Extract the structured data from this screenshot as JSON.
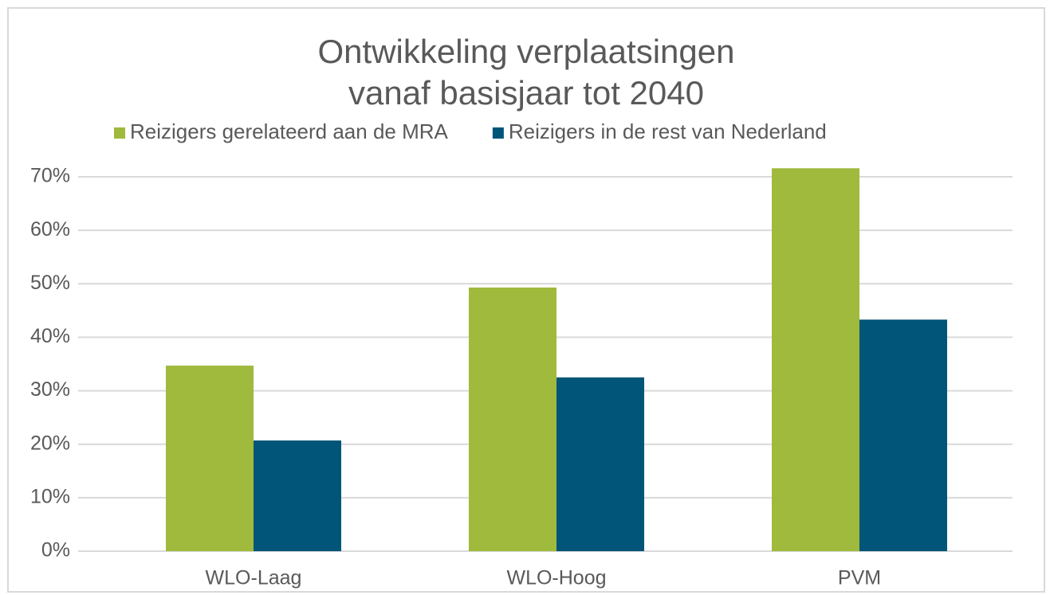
{
  "chart_data": {
    "type": "bar",
    "title": [
      "Ontwikkeling verplaatsingen",
      "vanaf basisjaar tot 2040"
    ],
    "categories": [
      "WLO-Laag",
      "WLO-Hoog",
      "PVM"
    ],
    "series": [
      {
        "name": "Reizigers gerelateerd aan de MRA",
        "color": "#9fba3c",
        "values": [
          34.7,
          49.3,
          71.6
        ]
      },
      {
        "name": "Reizigers in de rest van Nederland",
        "color": "#005578",
        "values": [
          20.7,
          32.5,
          43.3
        ]
      }
    ],
    "ylim": [
      0,
      70
    ],
    "yticks": [
      {
        "value": 0,
        "label": "0%"
      },
      {
        "value": 10,
        "label": "10%"
      },
      {
        "value": 20,
        "label": "20%"
      },
      {
        "value": 30,
        "label": "30%"
      },
      {
        "value": 40,
        "label": "40%"
      },
      {
        "value": 50,
        "label": "50%"
      },
      {
        "value": 60,
        "label": "60%"
      },
      {
        "value": 70,
        "label": "70%"
      }
    ],
    "grid": true,
    "legend": "top"
  }
}
